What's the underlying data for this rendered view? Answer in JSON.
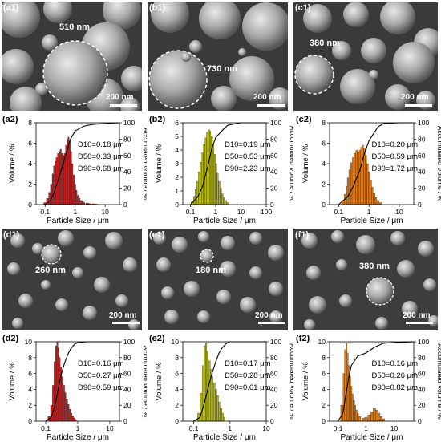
{
  "sem_row1": [
    {
      "label": "(a1)",
      "size_annotation": "510 nm",
      "scale_bar": "200 nm"
    },
    {
      "label": "(b1)",
      "size_annotation": "730 nm",
      "scale_bar": "200 nm"
    },
    {
      "label": "(c1)",
      "size_annotation": "380 nm",
      "scale_bar": "200 nm"
    }
  ],
  "sem_row2": [
    {
      "label": "(d1)",
      "size_annotation": "260 nm",
      "scale_bar": "200 nm"
    },
    {
      "label": "(e1)",
      "size_annotation": "180 nm",
      "scale_bar": "200 nm"
    },
    {
      "label": "(f1)",
      "size_annotation": "380 nm",
      "scale_bar": "200 nm"
    }
  ],
  "chart_data": [
    {
      "panel": "(a2)",
      "type": "bar",
      "color": "#cc1a1a",
      "xlabel": "Particle Size / μm",
      "ylabel": "Volume / %",
      "y2label": "Accmulated Volume / %",
      "xscale": "log",
      "xlim": [
        0.05,
        30
      ],
      "xticks": [
        "0.1",
        "1",
        "10"
      ],
      "ylim": [
        0,
        8
      ],
      "yticks": [
        "0",
        "2",
        "4",
        "6",
        "8"
      ],
      "y2ticks": [
        "0",
        "20",
        "40",
        "60",
        "80",
        "100"
      ],
      "stats": [
        "D10=0.18 μm",
        "D50=0.33 μm",
        "D90=0.68 μm"
      ],
      "bars": [
        [
          0.1,
          0.2
        ],
        [
          0.12,
          0.6
        ],
        [
          0.14,
          1.2
        ],
        [
          0.16,
          2.0
        ],
        [
          0.18,
          3.0
        ],
        [
          0.2,
          3.8
        ],
        [
          0.22,
          4.2
        ],
        [
          0.24,
          4.6
        ],
        [
          0.27,
          5.0
        ],
        [
          0.3,
          5.2
        ],
        [
          0.33,
          5.4
        ],
        [
          0.37,
          5.0
        ],
        [
          0.41,
          4.8
        ],
        [
          0.45,
          5.0
        ],
        [
          0.5,
          5.8
        ],
        [
          0.55,
          6.4
        ],
        [
          0.6,
          6.6
        ],
        [
          0.66,
          6.2
        ],
        [
          0.73,
          5.2
        ],
        [
          0.8,
          4.0
        ],
        [
          0.9,
          2.9
        ],
        [
          1.0,
          2.0
        ],
        [
          1.1,
          1.4
        ],
        [
          1.25,
          0.9
        ],
        [
          1.4,
          0.6
        ],
        [
          1.6,
          0.4
        ],
        [
          1.8,
          0.3
        ],
        [
          2.0,
          0.2
        ],
        [
          2.5,
          0.15
        ],
        [
          3.0,
          0.1
        ],
        [
          4.0,
          0.08
        ],
        [
          5.0,
          0.05
        ]
      ],
      "cumulative": [
        [
          0.1,
          0
        ],
        [
          0.15,
          5
        ],
        [
          0.2,
          15
        ],
        [
          0.3,
          35
        ],
        [
          0.4,
          50
        ],
        [
          0.5,
          62
        ],
        [
          0.7,
          80
        ],
        [
          1.0,
          90
        ],
        [
          2.0,
          96
        ],
        [
          4.0,
          98
        ],
        [
          10,
          99
        ],
        [
          30,
          100
        ]
      ]
    },
    {
      "panel": "(b2)",
      "type": "bar",
      "color": "#b5b800",
      "xlabel": "Particle Size / μm",
      "ylabel": "Volume / %",
      "y2label": "Accumulated Volume / %",
      "xscale": "log",
      "xlim": [
        0.05,
        100
      ],
      "xticks": [
        "0.1",
        "1",
        "10",
        "100"
      ],
      "ylim": [
        0,
        6
      ],
      "yticks": [
        "0",
        "1",
        "2",
        "3",
        "4",
        "5",
        "6"
      ],
      "y2ticks": [
        "0",
        "20",
        "40",
        "60",
        "80",
        "100"
      ],
      "stats": [
        "D10=0.19 μm",
        "D50=0.53 μm",
        "D90=2.23 μm"
      ],
      "bars": [
        [
          0.12,
          0.2
        ],
        [
          0.14,
          0.6
        ],
        [
          0.16,
          1.1
        ],
        [
          0.19,
          1.7
        ],
        [
          0.22,
          2.4
        ],
        [
          0.26,
          3.1
        ],
        [
          0.3,
          3.8
        ],
        [
          0.35,
          4.4
        ],
        [
          0.4,
          4.9
        ],
        [
          0.46,
          5.3
        ],
        [
          0.53,
          5.5
        ],
        [
          0.6,
          5.4
        ],
        [
          0.7,
          5.0
        ],
        [
          0.8,
          4.4
        ],
        [
          0.92,
          3.7
        ],
        [
          1.05,
          3.0
        ],
        [
          1.2,
          2.3
        ],
        [
          1.4,
          1.7
        ],
        [
          1.6,
          1.2
        ],
        [
          1.85,
          0.8
        ],
        [
          2.1,
          0.5
        ],
        [
          2.5,
          0.3
        ],
        [
          3.0,
          0.15
        ]
      ],
      "cumulative": [
        [
          0.1,
          0
        ],
        [
          0.2,
          10
        ],
        [
          0.3,
          22
        ],
        [
          0.5,
          48
        ],
        [
          0.7,
          68
        ],
        [
          1.0,
          82
        ],
        [
          2.0,
          92
        ],
        [
          3.0,
          97
        ],
        [
          10,
          100
        ],
        [
          100,
          100
        ]
      ]
    },
    {
      "panel": "(c2)",
      "type": "bar",
      "color": "#d97a1a",
      "xlabel": "Particle Size / μm",
      "ylabel": "Volume / %",
      "y2label": "Accumulated Volume / %",
      "xscale": "log",
      "xlim": [
        0.05,
        30
      ],
      "xticks": [
        "0.1",
        "1",
        "10"
      ],
      "ylim": [
        0,
        8
      ],
      "yticks": [
        "0",
        "2",
        "4",
        "6",
        "8"
      ],
      "y2ticks": [
        "0",
        "20",
        "40",
        "60",
        "80",
        "100"
      ],
      "stats": [
        "D10=0.20 μm",
        "D50=0.59 μm",
        "D90=1.72 μm"
      ],
      "bars": [
        [
          0.14,
          0.4
        ],
        [
          0.16,
          1.0
        ],
        [
          0.18,
          1.8
        ],
        [
          0.2,
          2.6
        ],
        [
          0.23,
          3.4
        ],
        [
          0.26,
          4.1
        ],
        [
          0.3,
          4.6
        ],
        [
          0.34,
          5.0
        ],
        [
          0.39,
          5.3
        ],
        [
          0.44,
          5.1
        ],
        [
          0.5,
          5.3
        ],
        [
          0.56,
          5.6
        ],
        [
          0.63,
          5.8
        ],
        [
          0.71,
          5.5
        ],
        [
          0.8,
          4.8
        ],
        [
          0.9,
          4.0
        ],
        [
          1.0,
          3.2
        ],
        [
          1.15,
          2.4
        ],
        [
          1.3,
          1.7
        ],
        [
          1.5,
          1.1
        ],
        [
          1.7,
          0.7
        ],
        [
          2.0,
          0.4
        ],
        [
          2.4,
          0.2
        ]
      ],
      "cumulative": [
        [
          0.1,
          0
        ],
        [
          0.2,
          10
        ],
        [
          0.3,
          22
        ],
        [
          0.5,
          42
        ],
        [
          0.7,
          62
        ],
        [
          1.0,
          78
        ],
        [
          1.5,
          88
        ],
        [
          2.0,
          95
        ],
        [
          3.0,
          99
        ],
        [
          10,
          100
        ],
        [
          30,
          100
        ]
      ]
    },
    {
      "panel": "(d2)",
      "type": "bar",
      "color": "#cc1a1a",
      "xlabel": "Particle Size / μm",
      "ylabel": "Volume / %",
      "y2label": "Accmulated Volume / %",
      "xscale": "log",
      "xlim": [
        0.05,
        20
      ],
      "xticks": [
        "0.1",
        "1",
        "10"
      ],
      "ylim": [
        0,
        10
      ],
      "yticks": [
        "0",
        "2",
        "4",
        "6",
        "8",
        "10"
      ],
      "y2ticks": [
        "0",
        "20",
        "40",
        "60",
        "80",
        "100"
      ],
      "stats": [
        "D10=0.16 μm",
        "D50=0.27 μm",
        "D90=0.59 μm"
      ],
      "bars": [
        [
          0.13,
          0.6
        ],
        [
          0.15,
          2.0
        ],
        [
          0.17,
          4.5
        ],
        [
          0.19,
          7.5
        ],
        [
          0.21,
          9.5
        ],
        [
          0.23,
          10.0
        ],
        [
          0.25,
          9.2
        ],
        [
          0.27,
          8.0
        ],
        [
          0.3,
          6.8
        ],
        [
          0.33,
          5.6
        ],
        [
          0.37,
          4.5
        ],
        [
          0.41,
          3.6
        ],
        [
          0.46,
          2.8
        ],
        [
          0.51,
          2.1
        ],
        [
          0.57,
          1.5
        ],
        [
          0.63,
          1.0
        ],
        [
          0.7,
          0.7
        ],
        [
          0.78,
          0.4
        ],
        [
          0.87,
          0.2
        ]
      ],
      "cumulative": [
        [
          0.1,
          0
        ],
        [
          0.15,
          5
        ],
        [
          0.2,
          22
        ],
        [
          0.25,
          42
        ],
        [
          0.3,
          58
        ],
        [
          0.4,
          75
        ],
        [
          0.5,
          85
        ],
        [
          0.6,
          91
        ],
        [
          0.8,
          97
        ],
        [
          1.0,
          99
        ],
        [
          2.0,
          100
        ],
        [
          20,
          100
        ]
      ]
    },
    {
      "panel": "(e2)",
      "type": "bar",
      "color": "#b5b800",
      "xlabel": "Particle Size / μm",
      "ylabel": "Volume / %",
      "y2label": "Accumulated Volume / %",
      "xscale": "log",
      "xlim": [
        0.05,
        10
      ],
      "xticks": [
        "0.1",
        "1",
        "10"
      ],
      "ylim": [
        0,
        10
      ],
      "yticks": [
        "0",
        "2",
        "4",
        "6",
        "8",
        "10"
      ],
      "y2ticks": [
        "0",
        "20",
        "40",
        "60",
        "80",
        "100"
      ],
      "stats": [
        "D10=0.17 μm",
        "D50=0.28 μm",
        "D90=0.61 μm"
      ],
      "bars": [
        [
          0.14,
          1.0
        ],
        [
          0.16,
          3.5
        ],
        [
          0.18,
          7.0
        ],
        [
          0.2,
          9.5
        ],
        [
          0.22,
          9.8
        ],
        [
          0.24,
          8.8
        ],
        [
          0.27,
          7.6
        ],
        [
          0.3,
          6.5
        ],
        [
          0.33,
          5.6
        ],
        [
          0.37,
          4.8
        ],
        [
          0.41,
          4.0
        ],
        [
          0.46,
          3.2
        ],
        [
          0.51,
          2.4
        ],
        [
          0.57,
          1.6
        ],
        [
          0.63,
          1.0
        ],
        [
          0.7,
          0.5
        ]
      ],
      "cumulative": [
        [
          0.1,
          0
        ],
        [
          0.15,
          5
        ],
        [
          0.2,
          24
        ],
        [
          0.25,
          42
        ],
        [
          0.3,
          56
        ],
        [
          0.4,
          74
        ],
        [
          0.5,
          86
        ],
        [
          0.6,
          92
        ],
        [
          0.8,
          98
        ],
        [
          1.0,
          100
        ],
        [
          10,
          100
        ]
      ]
    },
    {
      "panel": "(f2)",
      "type": "bar",
      "color": "#d97a1a",
      "xlabel": "Particle Size / μm",
      "ylabel": "Volume / %",
      "y2label": "Accumulated Volume / %",
      "xscale": "log",
      "xlim": [
        0.05,
        50
      ],
      "xticks": [
        "0.1",
        "1",
        "10"
      ],
      "ylim": [
        0,
        10
      ],
      "yticks": [
        "0",
        "2",
        "4",
        "6",
        "8",
        "10"
      ],
      "y2ticks": [
        "0",
        "20",
        "40",
        "60",
        "80",
        "100"
      ],
      "stats": [
        "D10=0.16 μm",
        "D50=0.26 μm",
        "D90=0.82 μm"
      ],
      "bars": [
        [
          0.14,
          2.0
        ],
        [
          0.16,
          6.0
        ],
        [
          0.18,
          9.0
        ],
        [
          0.2,
          9.8
        ],
        [
          0.22,
          8.6
        ],
        [
          0.24,
          7.0
        ],
        [
          0.27,
          5.6
        ],
        [
          0.3,
          4.4
        ],
        [
          0.33,
          3.4
        ],
        [
          0.37,
          2.6
        ],
        [
          0.41,
          2.0
        ],
        [
          0.46,
          1.4
        ],
        [
          0.51,
          1.0
        ],
        [
          0.6,
          0.6
        ],
        [
          0.8,
          0.4
        ],
        [
          1.0,
          0.5
        ],
        [
          1.3,
          0.8
        ],
        [
          1.6,
          1.2
        ],
        [
          2.0,
          1.6
        ],
        [
          2.4,
          1.4
        ],
        [
          2.9,
          1.0
        ],
        [
          3.5,
          0.6
        ],
        [
          4.2,
          0.3
        ]
      ],
      "cumulative": [
        [
          0.1,
          0
        ],
        [
          0.15,
          10
        ],
        [
          0.2,
          38
        ],
        [
          0.25,
          58
        ],
        [
          0.3,
          70
        ],
        [
          0.5,
          82
        ],
        [
          1.0,
          86
        ],
        [
          2.0,
          93
        ],
        [
          4.0,
          98
        ],
        [
          10,
          99
        ],
        [
          50,
          100
        ]
      ]
    }
  ]
}
